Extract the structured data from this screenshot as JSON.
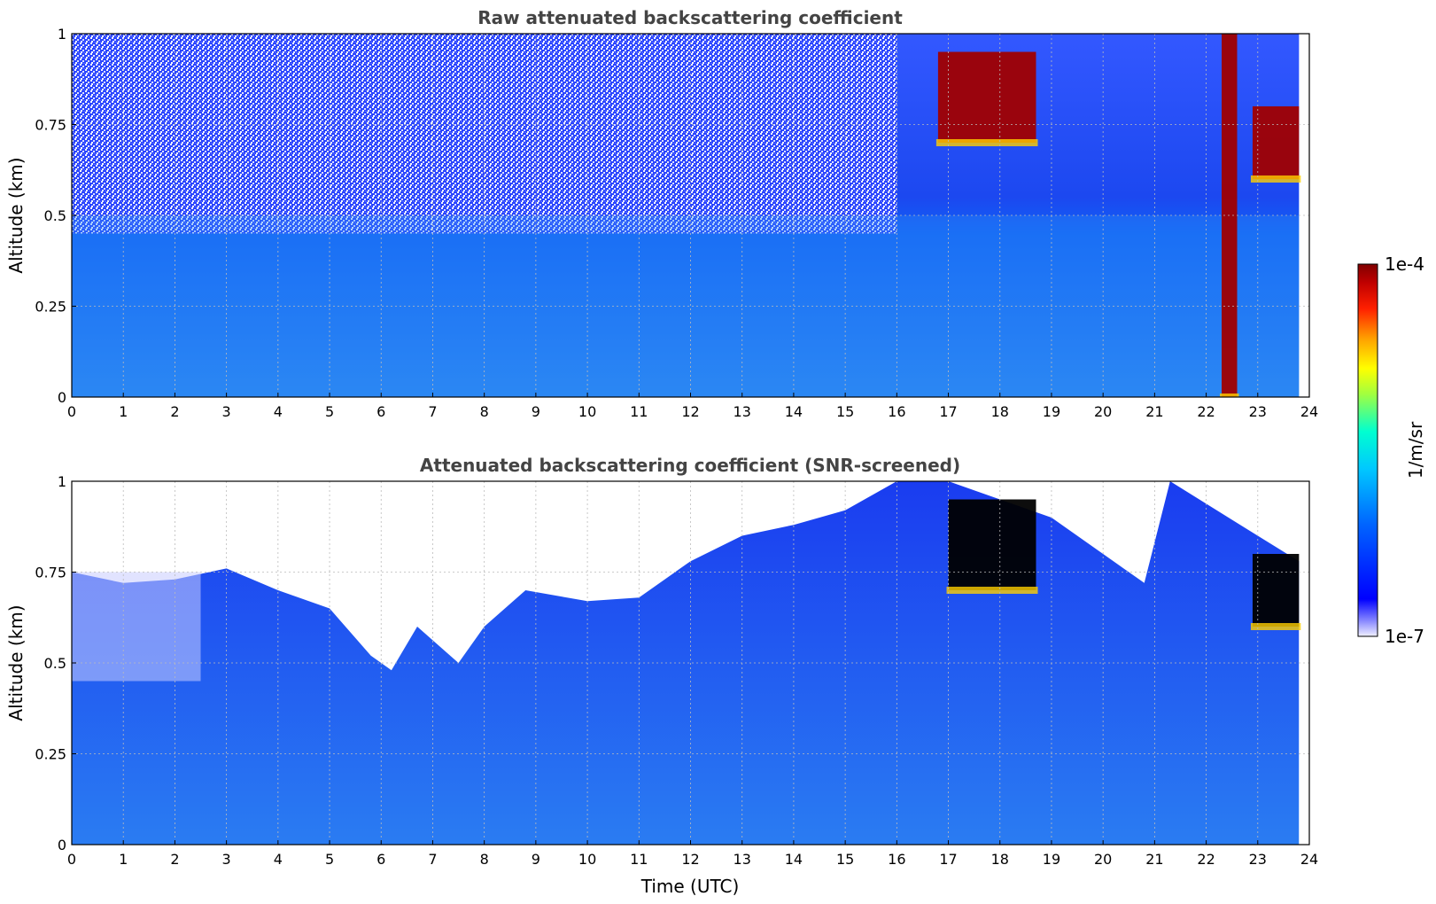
{
  "chart_data": [
    {
      "type": "heatmap",
      "title": "Raw attenuated backscattering coefficient",
      "xlabel": "",
      "ylabel": "Altitude (km)",
      "xlim": [
        0,
        24
      ],
      "ylim": [
        0,
        1
      ],
      "x_ticks": [
        "0",
        "1",
        "2",
        "3",
        "4",
        "5",
        "6",
        "7",
        "8",
        "9",
        "10",
        "11",
        "12",
        "13",
        "14",
        "15",
        "16",
        "17",
        "18",
        "19",
        "20",
        "21",
        "22",
        "23",
        "24"
      ],
      "y_ticks": [
        "0",
        "0.25",
        "0.5",
        "0.75",
        "1"
      ],
      "grid": true,
      "features": [
        {
          "desc": "noisy signal above boundary layer",
          "x_start": 0,
          "x_end": 16,
          "y_min": 0.45,
          "y_max": 1.0,
          "level": "noise"
        },
        {
          "desc": "boundary layer aerosol",
          "x_start": 0,
          "x_end": 23.8,
          "y_min": 0.0,
          "y_max": 0.5,
          "level": "low-moderate"
        },
        {
          "desc": "cloud layer",
          "x_start": 16.8,
          "x_end": 18.7,
          "y_min": 0.7,
          "y_max": 0.95,
          "level": "high"
        },
        {
          "desc": "cloud layer",
          "x_start": 22.9,
          "x_end": 23.8,
          "y_min": 0.6,
          "y_max": 0.8,
          "level": "high"
        },
        {
          "desc": "precipitation / strong column",
          "x_start": 22.3,
          "x_end": 22.6,
          "y_min": 0.0,
          "y_max": 1.0,
          "level": "high"
        }
      ]
    },
    {
      "type": "heatmap",
      "title": "Attenuated backscattering coefficient (SNR-screened)",
      "xlabel": "Time (UTC)",
      "ylabel": "Altitude (km)",
      "xlim": [
        0,
        24
      ],
      "ylim": [
        0,
        1
      ],
      "x_ticks": [
        "0",
        "1",
        "2",
        "3",
        "4",
        "5",
        "6",
        "7",
        "8",
        "9",
        "10",
        "11",
        "12",
        "13",
        "14",
        "15",
        "16",
        "17",
        "18",
        "19",
        "20",
        "21",
        "22",
        "23",
        "24"
      ],
      "y_ticks": [
        "0",
        "0.25",
        "0.5",
        "0.75",
        "1"
      ],
      "grid": true,
      "boundary_top_km": [
        [
          0,
          0.75
        ],
        [
          1,
          0.72
        ],
        [
          2,
          0.73
        ],
        [
          3,
          0.76
        ],
        [
          4,
          0.7
        ],
        [
          5,
          0.65
        ],
        [
          5.8,
          0.52
        ],
        [
          6.2,
          0.48
        ],
        [
          6.7,
          0.6
        ],
        [
          7.5,
          0.5
        ],
        [
          8,
          0.6
        ],
        [
          8.8,
          0.7
        ],
        [
          10,
          0.67
        ],
        [
          11,
          0.68
        ],
        [
          12,
          0.78
        ],
        [
          13,
          0.85
        ],
        [
          14,
          0.88
        ],
        [
          15,
          0.92
        ],
        [
          16,
          1.0
        ],
        [
          17,
          1.0
        ],
        [
          18,
          0.95
        ],
        [
          19,
          0.9
        ],
        [
          20,
          0.8
        ],
        [
          20.8,
          0.72
        ],
        [
          21.3,
          1.0
        ],
        [
          23,
          0.85
        ],
        [
          23.8,
          0.78
        ]
      ],
      "features": [
        {
          "desc": "cloud saturated (black)",
          "x_start": 17.0,
          "x_end": 18.7,
          "y_min": 0.7,
          "y_max": 0.95,
          "level": "saturated"
        },
        {
          "desc": "cloud saturated (black)",
          "x_start": 22.9,
          "x_end": 23.8,
          "y_min": 0.6,
          "y_max": 0.8,
          "level": "saturated"
        }
      ]
    }
  ],
  "colorbar": {
    "label": "1/m/sr",
    "min_label": "1e-7",
    "max_label": "1e-4",
    "scale": "log",
    "colors": [
      "#e8e8ff",
      "#0000ff",
      "#0070ff",
      "#00c0ff",
      "#00ffff",
      "#ffff00",
      "#ff8000",
      "#ff0000",
      "#800000"
    ]
  }
}
